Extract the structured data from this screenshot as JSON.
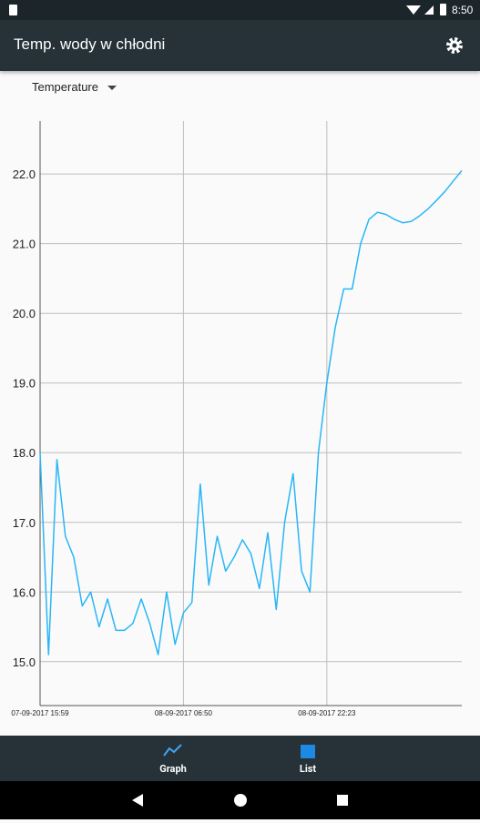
{
  "status_bar": {
    "time": "8:50"
  },
  "app_bar": {
    "title": "Temp. wody w chłodni"
  },
  "dropdown": {
    "label": "Temperature"
  },
  "chart_data": {
    "type": "line",
    "categories": [
      "07-09-2017 15:59",
      null,
      null,
      null,
      null,
      null,
      null,
      null,
      null,
      null,
      null,
      null,
      null,
      null,
      null,
      null,
      null,
      "08-09-2017 06:50",
      null,
      null,
      null,
      null,
      null,
      null,
      null,
      null,
      null,
      null,
      null,
      null,
      null,
      null,
      null,
      null,
      "08-09-2017 22:23",
      null,
      null,
      null,
      null,
      null,
      null,
      null,
      null,
      null,
      null,
      null,
      null,
      null,
      null,
      null,
      null
    ],
    "series": [
      {
        "name": "Temperature",
        "color": "#29b6f6",
        "values": [
          18.0,
          15.1,
          17.9,
          16.8,
          16.5,
          15.8,
          16.0,
          15.5,
          15.9,
          15.45,
          15.45,
          15.55,
          15.9,
          15.55,
          15.1,
          16.0,
          15.25,
          15.7,
          15.85,
          17.55,
          16.1,
          16.8,
          16.3,
          16.5,
          16.75,
          16.55,
          16.05,
          16.85,
          15.75,
          17.0,
          17.7,
          16.3,
          16.0,
          18.0,
          19.0,
          19.8,
          20.35,
          20.35,
          21.0,
          21.35,
          21.45,
          21.42,
          21.35,
          21.3,
          21.32,
          21.4,
          21.5,
          21.62,
          21.75,
          21.9,
          22.05
        ]
      }
    ],
    "ylim": [
      14.37,
      22.76
    ],
    "yticks": [
      {
        "value": 15,
        "label": "15.0"
      },
      {
        "value": 16,
        "label": "16.0"
      },
      {
        "value": 17,
        "label": "17.0"
      },
      {
        "value": 18,
        "label": "18.0"
      },
      {
        "value": 19,
        "label": "19.0"
      },
      {
        "value": 20,
        "label": "20.0"
      },
      {
        "value": 21,
        "label": "21.0"
      },
      {
        "value": 22,
        "label": "22.0"
      }
    ],
    "grid": true
  },
  "bottom_nav": {
    "items": [
      {
        "label": "Graph"
      },
      {
        "label": "List"
      }
    ]
  }
}
